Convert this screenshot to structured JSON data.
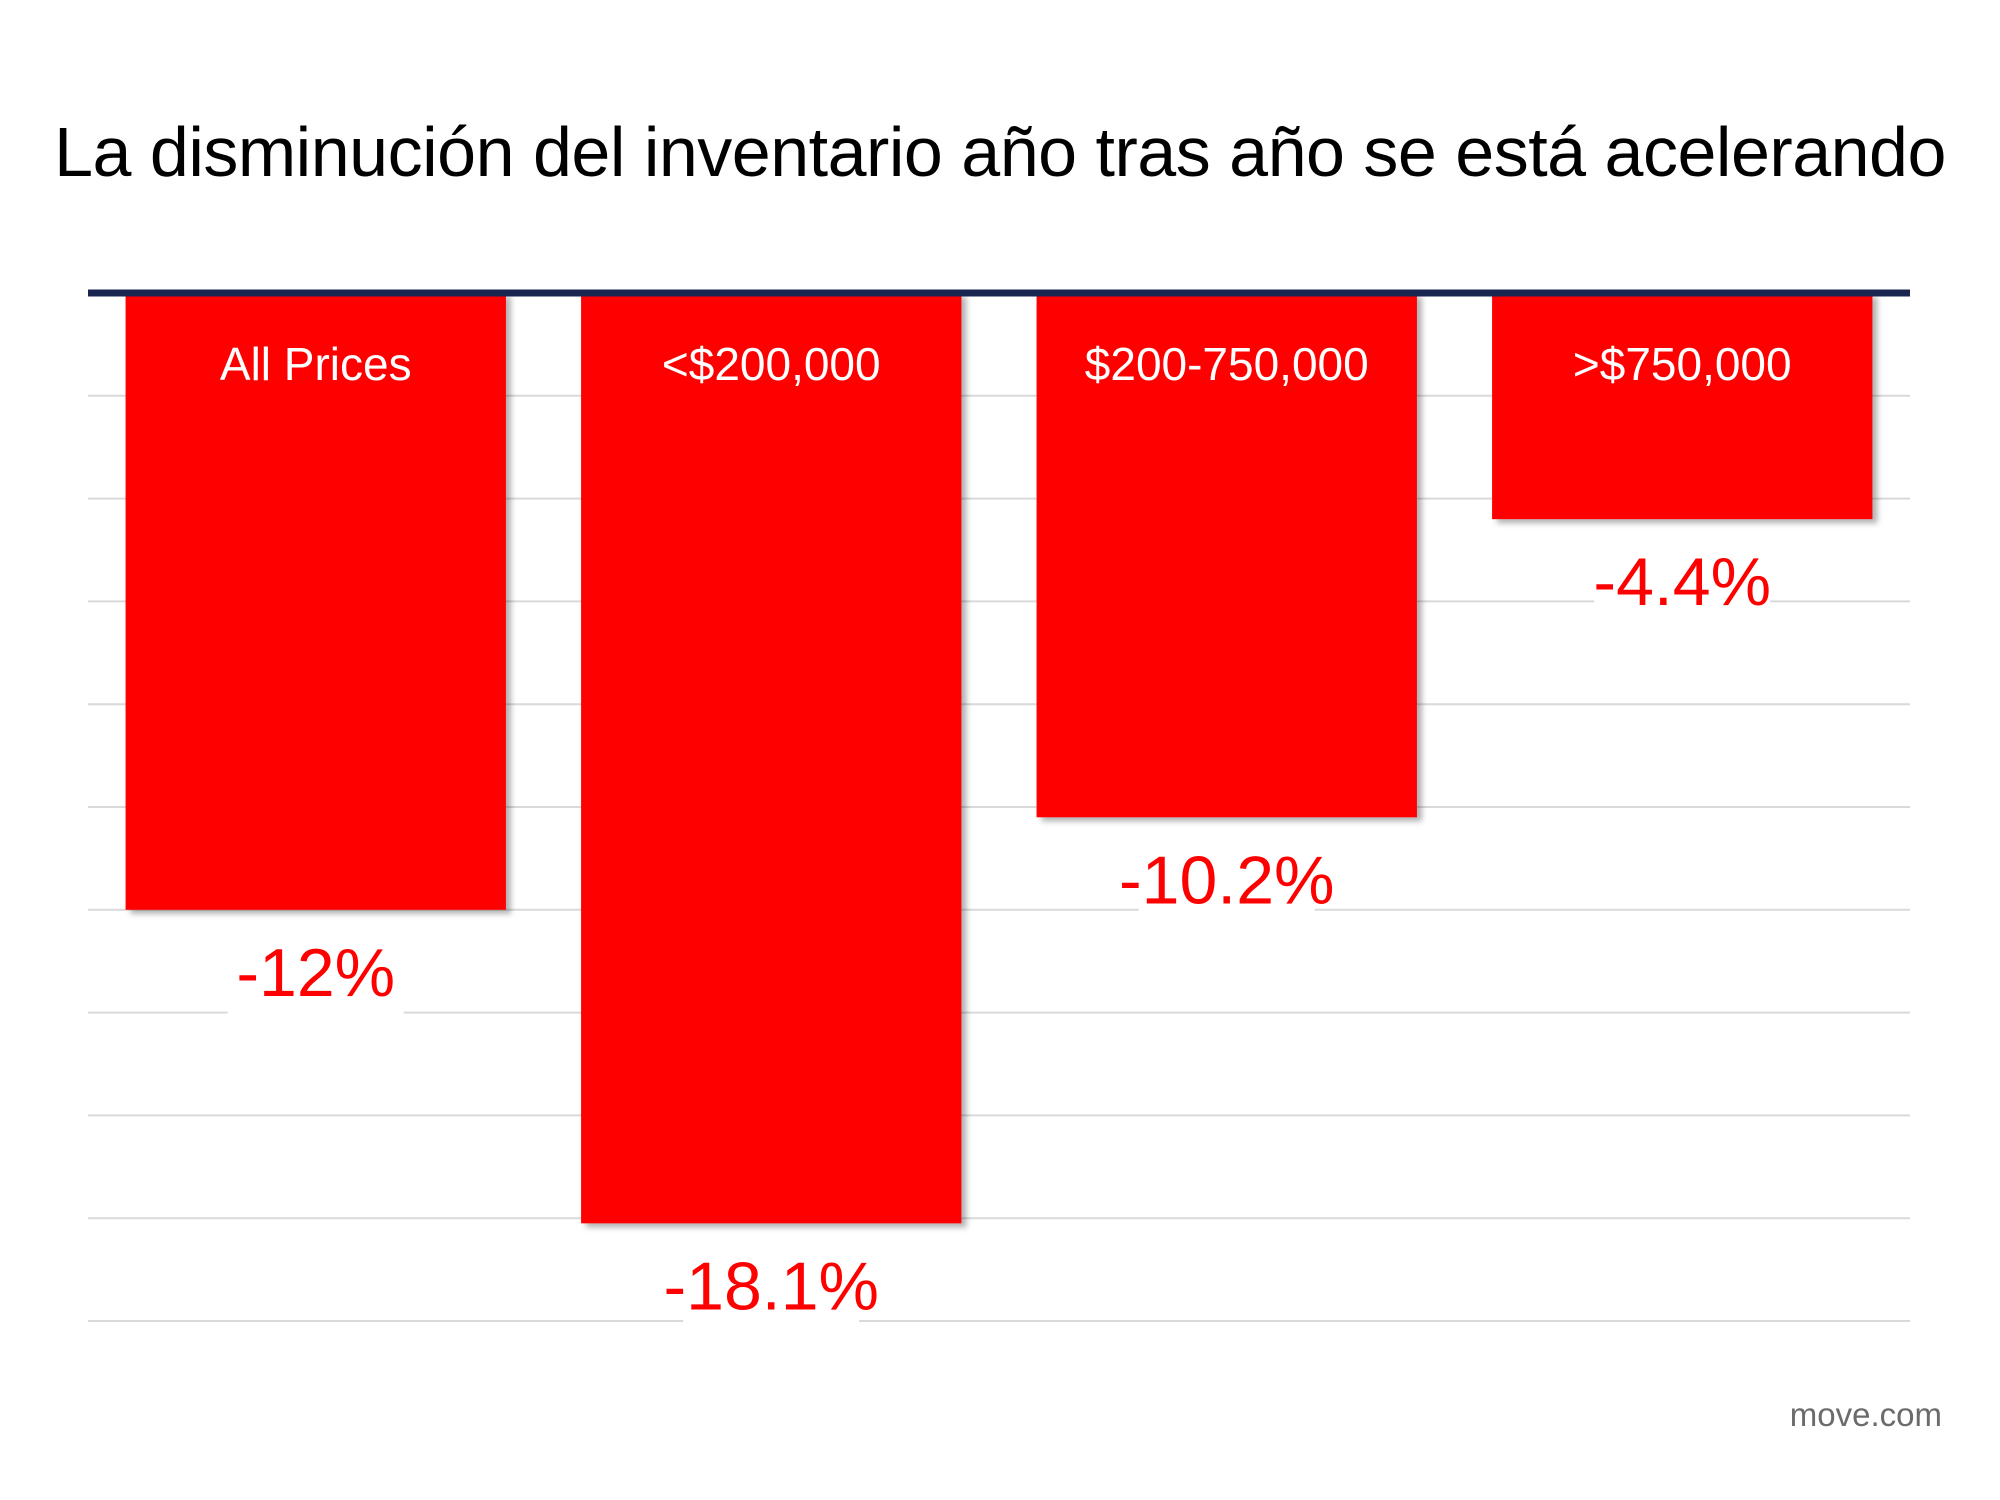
{
  "chart_data": {
    "type": "bar",
    "title": "La disminución del inventario año tras año se está acelerando",
    "categories": [
      "All Prices",
      "<$200,000",
      "$200-750,000",
      ">$750,000"
    ],
    "values": [
      -12,
      -18.1,
      -10.2,
      -4.4
    ],
    "data_labels": [
      "-12%",
      "-18.1%",
      "-10.2%",
      "-4.4%"
    ],
    "ylim": [
      -20,
      0
    ],
    "grid": true,
    "grid_step": 2,
    "bar_color": "#ff0000",
    "axis_color": "#1a2550",
    "label_color": "#ff0000",
    "category_label_color": "#ffffff",
    "source": "move.com"
  }
}
